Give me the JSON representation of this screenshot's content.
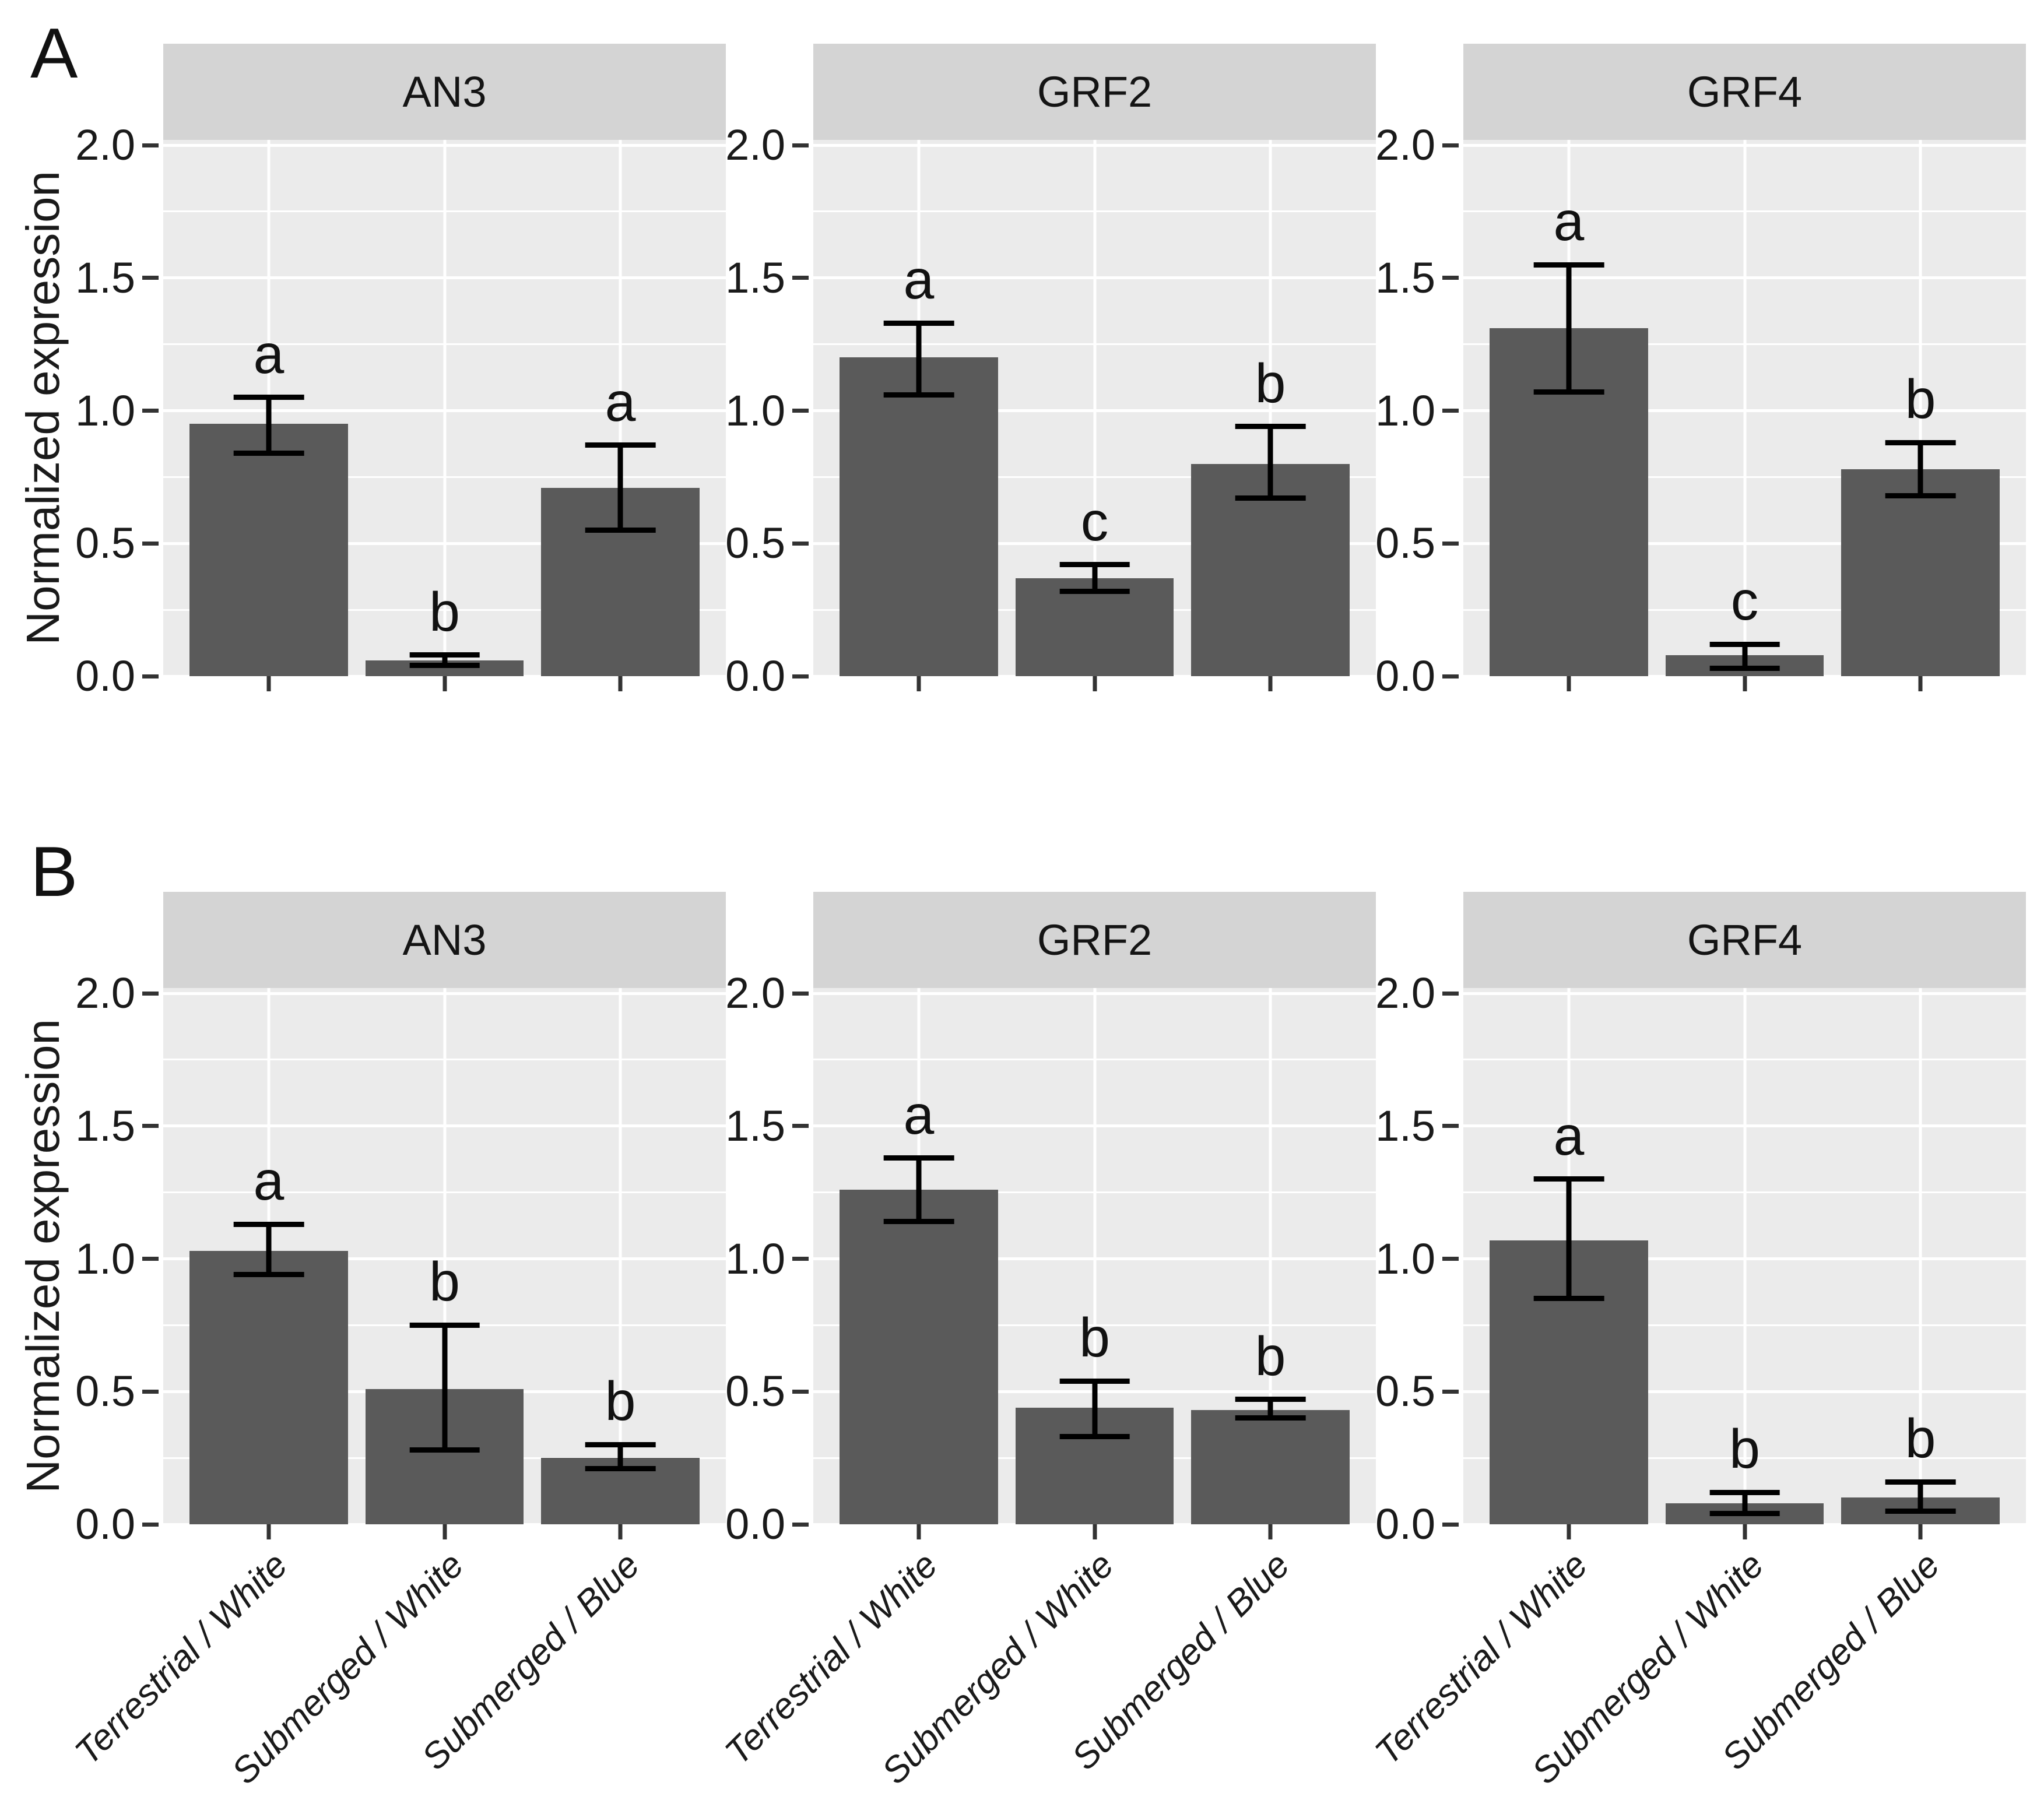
{
  "chart_data": {
    "type": "bar",
    "ylabel": "Normalized expression",
    "categories": [
      "Terrestrial / White",
      "Submerged / White",
      "Submerged / Blue"
    ],
    "y_axis": {
      "ylim": [
        0,
        2
      ],
      "tick_values": [
        0,
        0.5,
        1,
        1.5,
        2
      ],
      "tick_labels": [
        "0.0",
        "0.5",
        "1.0",
        "1.5",
        "2.0"
      ],
      "minor_ticks": [
        0.25,
        0.75,
        1.25,
        1.75
      ],
      "top_value": 2.02
    },
    "x_axis": {
      "centers_pct": [
        18.75,
        50,
        81.25
      ],
      "labels_shown_on_row": "B"
    },
    "grid": "white horizontal major/minor lines and one vertical line per category",
    "legend": "none",
    "rows": [
      {
        "label": "A",
        "facets": [
          {
            "gene": "AN3",
            "bars": [
              {
                "category": "Terrestrial / White",
                "value": 0.95,
                "err_low": 0.84,
                "err_high": 1.05,
                "letter": "a"
              },
              {
                "category": "Submerged / White",
                "value": 0.06,
                "err_low": 0.04,
                "err_high": 0.08,
                "letter": "b"
              },
              {
                "category": "Submerged / Blue",
                "value": 0.71,
                "err_low": 0.55,
                "err_high": 0.87,
                "letter": "a"
              }
            ]
          },
          {
            "gene": "GRF2",
            "bars": [
              {
                "category": "Terrestrial / White",
                "value": 1.2,
                "err_low": 1.06,
                "err_high": 1.33,
                "letter": "a"
              },
              {
                "category": "Submerged / White",
                "value": 0.37,
                "err_low": 0.32,
                "err_high": 0.42,
                "letter": "c"
              },
              {
                "category": "Submerged / Blue",
                "value": 0.8,
                "err_low": 0.67,
                "err_high": 0.94,
                "letter": "b"
              }
            ]
          },
          {
            "gene": "GRF4",
            "bars": [
              {
                "category": "Terrestrial / White",
                "value": 1.31,
                "err_low": 1.07,
                "err_high": 1.55,
                "letter": "a"
              },
              {
                "category": "Submerged / White",
                "value": 0.08,
                "err_low": 0.03,
                "err_high": 0.12,
                "letter": "c"
              },
              {
                "category": "Submerged / Blue",
                "value": 0.78,
                "err_low": 0.68,
                "err_high": 0.88,
                "letter": "b"
              }
            ]
          }
        ]
      },
      {
        "label": "B",
        "facets": [
          {
            "gene": "AN3",
            "bars": [
              {
                "category": "Terrestrial / White",
                "value": 1.03,
                "err_low": 0.94,
                "err_high": 1.13,
                "letter": "a"
              },
              {
                "category": "Submerged / White",
                "value": 0.51,
                "err_low": 0.28,
                "err_high": 0.75,
                "letter": "b"
              },
              {
                "category": "Submerged / Blue",
                "value": 0.25,
                "err_low": 0.21,
                "err_high": 0.3,
                "letter": "b"
              }
            ]
          },
          {
            "gene": "GRF2",
            "bars": [
              {
                "category": "Terrestrial / White",
                "value": 1.26,
                "err_low": 1.14,
                "err_high": 1.38,
                "letter": "a"
              },
              {
                "category": "Submerged / White",
                "value": 0.44,
                "err_low": 0.33,
                "err_high": 0.54,
                "letter": "b"
              },
              {
                "category": "Submerged / Blue",
                "value": 0.43,
                "err_low": 0.4,
                "err_high": 0.47,
                "letter": "b"
              }
            ]
          },
          {
            "gene": "GRF4",
            "bars": [
              {
                "category": "Terrestrial / White",
                "value": 1.07,
                "err_low": 0.85,
                "err_high": 1.3,
                "letter": "a"
              },
              {
                "category": "Submerged / White",
                "value": 0.08,
                "err_low": 0.04,
                "err_high": 0.12,
                "letter": "b"
              },
              {
                "category": "Submerged / Blue",
                "value": 0.1,
                "err_low": 0.05,
                "err_high": 0.16,
                "letter": "b"
              }
            ]
          }
        ]
      }
    ],
    "colors": {
      "bar": "#5a5a5a",
      "panel_bg": "#ebebeb",
      "strip_bg": "#d4d4d4",
      "grid": "#ffffff",
      "error_bar": "#000000",
      "axis_text": "#1a1a1a",
      "tick_mark": "#333333"
    }
  }
}
